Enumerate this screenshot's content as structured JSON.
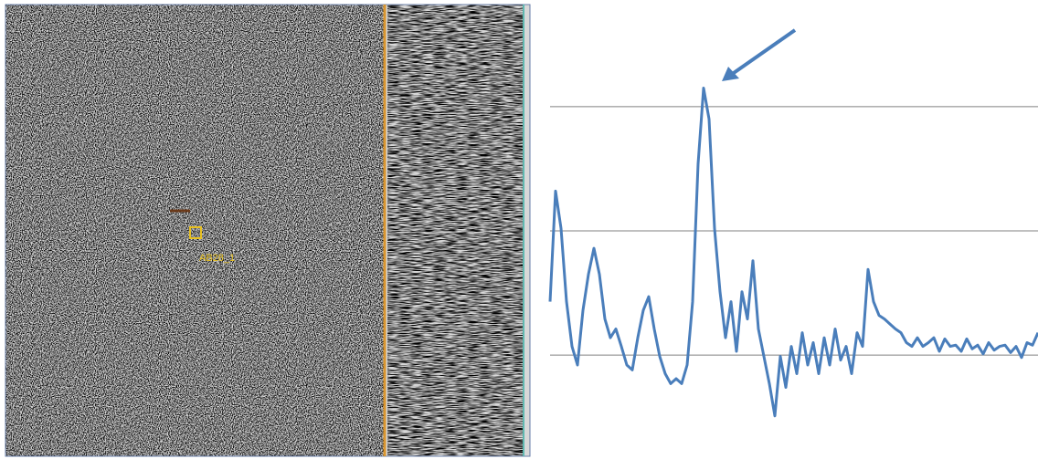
{
  "image": {
    "label": "AB28_1"
  },
  "chart_data": {
    "type": "line",
    "color": "#4a7ebb",
    "values": [
      1.43,
      2.32,
      2.02,
      1.43,
      1.07,
      0.92,
      1.36,
      1.65,
      1.86,
      1.65,
      1.29,
      1.14,
      1.21,
      1.07,
      0.92,
      0.88,
      1.14,
      1.36,
      1.47,
      1.21,
      0.99,
      0.85,
      0.77,
      0.81,
      0.77,
      0.92,
      1.43,
      2.54,
      3.15,
      2.9,
      2.02,
      1.51,
      1.14,
      1.43,
      1.03,
      1.51,
      1.29,
      1.76,
      1.21,
      0.99,
      0.77,
      0.51,
      0.99,
      0.74,
      1.07,
      0.85,
      1.18,
      0.92,
      1.1,
      0.85,
      1.14,
      0.92,
      1.21,
      0.96,
      1.07,
      0.85,
      1.18,
      1.07,
      1.69,
      1.43,
      1.32,
      1.29,
      1.25,
      1.21,
      1.18,
      1.1,
      1.07,
      1.14,
      1.07,
      1.1,
      1.14,
      1.03,
      1.13,
      1.07,
      1.08,
      1.03,
      1.13,
      1.05,
      1.08,
      1.01,
      1.1,
      1.04,
      1.07,
      1.08,
      1.02,
      1.07,
      0.98,
      1.1,
      1.08,
      1.18
    ],
    "ylim": [
      0.2,
      3.8
    ],
    "yticks": [
      1,
      2,
      3
    ],
    "grid": true
  }
}
